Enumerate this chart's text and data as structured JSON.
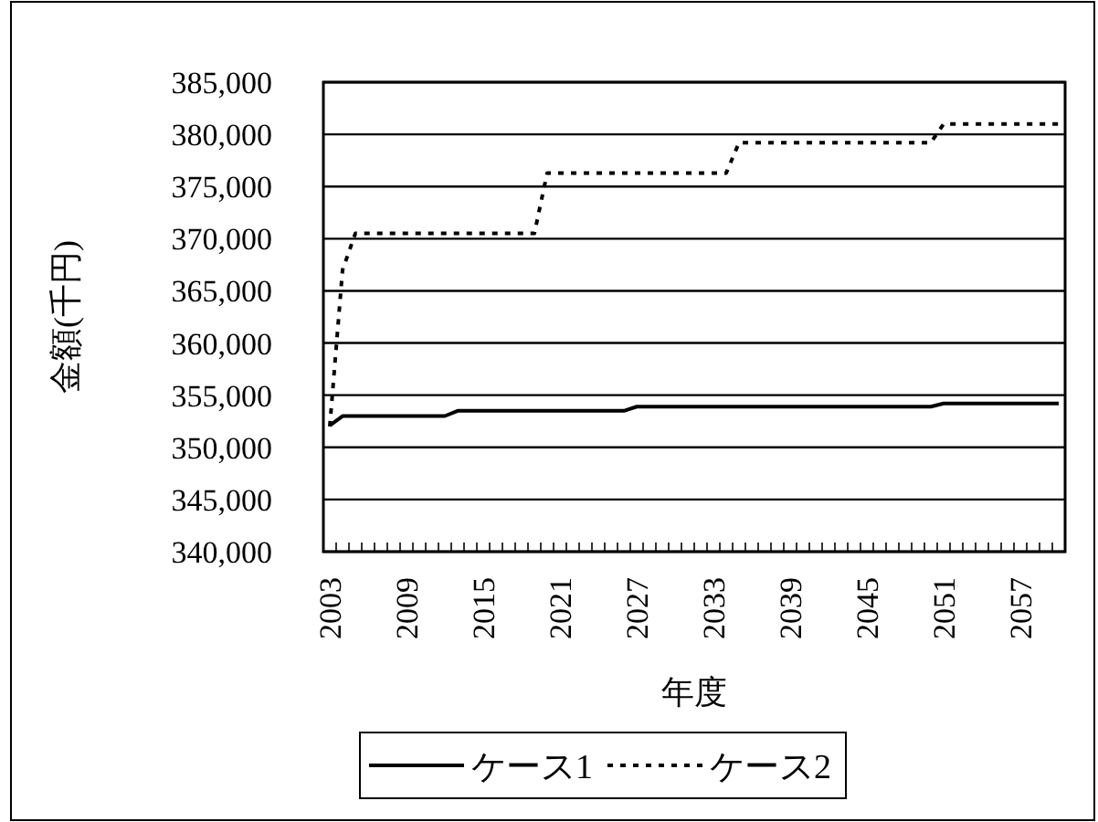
{
  "chart_data": {
    "type": "line",
    "xlabel": "年度",
    "ylabel": "金額(千円)",
    "categories": [
      "2003",
      null,
      null,
      null,
      null,
      null,
      "2009",
      null,
      null,
      null,
      null,
      null,
      "2015",
      null,
      null,
      null,
      null,
      null,
      "2021",
      null,
      null,
      null,
      null,
      null,
      "2027",
      null,
      null,
      null,
      null,
      null,
      "2033",
      null,
      null,
      null,
      null,
      null,
      "2039",
      null,
      null,
      null,
      null,
      null,
      "2045",
      null,
      null,
      null,
      null,
      null,
      "2051",
      null,
      null,
      null,
      null,
      null,
      "2057",
      null,
      null,
      null
    ],
    "series": [
      {
        "name": "ケース1",
        "color": "#000000",
        "line_style": "solid",
        "values": [
          352100,
          353000,
          353000,
          353000,
          353000,
          353000,
          353000,
          353000,
          353000,
          353000,
          353500,
          353500,
          353500,
          353500,
          353500,
          353500,
          353500,
          353500,
          353500,
          353500,
          353500,
          353500,
          353500,
          353500,
          353900,
          353900,
          353900,
          353900,
          353900,
          353900,
          353900,
          353900,
          353900,
          353900,
          353900,
          353900,
          353900,
          353900,
          353900,
          353900,
          353900,
          353900,
          353900,
          353900,
          353900,
          353900,
          353900,
          353900,
          354200,
          354200,
          354200,
          354200,
          354200,
          354200,
          354200,
          354200,
          354200,
          354200
        ]
      },
      {
        "name": "ケース2",
        "color": "#000000",
        "line_style": "dotted",
        "values": [
          352000,
          367000,
          370500,
          370500,
          370500,
          370500,
          370500,
          370500,
          370500,
          370500,
          370500,
          370500,
          370500,
          370500,
          370500,
          370500,
          370500,
          376300,
          376300,
          376300,
          376300,
          376300,
          376300,
          376300,
          376300,
          376300,
          376300,
          376300,
          376300,
          376300,
          376300,
          376300,
          379200,
          379200,
          379200,
          379200,
          379200,
          379200,
          379200,
          379200,
          379200,
          379200,
          379200,
          379200,
          379200,
          379200,
          379200,
          379200,
          381000,
          381000,
          381000,
          381000,
          381000,
          381000,
          381000,
          381000,
          381000,
          381000
        ]
      }
    ],
    "ylim": [
      340000,
      385000
    ],
    "yticks": [
      {
        "value": 340000,
        "label": "340,000"
      },
      {
        "value": 345000,
        "label": "345,000"
      },
      {
        "value": 350000,
        "label": "350,000"
      },
      {
        "value": 355000,
        "label": "355,000"
      },
      {
        "value": 360000,
        "label": "360,000"
      },
      {
        "value": 365000,
        "label": "365,000"
      },
      {
        "value": 370000,
        "label": "370,000"
      },
      {
        "value": 375000,
        "label": "375,000"
      },
      {
        "value": 380000,
        "label": "380,000"
      },
      {
        "value": 385000,
        "label": "385,000"
      }
    ],
    "grid": "y",
    "legend": "bottom"
  }
}
